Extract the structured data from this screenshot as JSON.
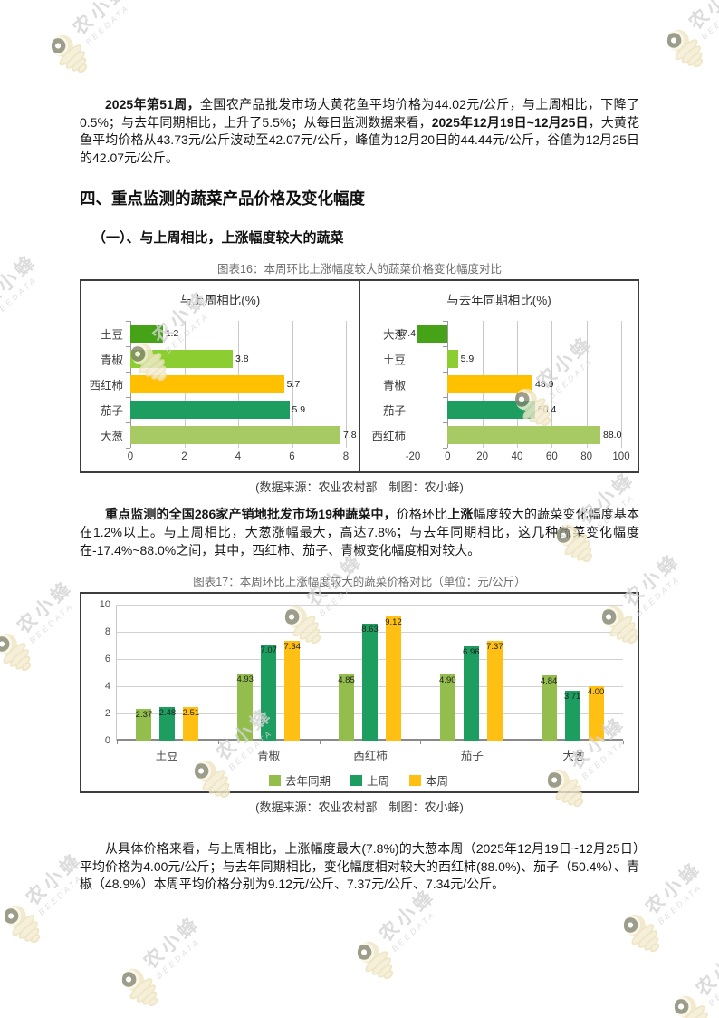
{
  "watermark": {
    "brand": "农小蜂",
    "subbrand": "BEEDATA"
  },
  "document": {
    "paragraph_1": {
      "segments": [
        {
          "text": "2025年第51周，",
          "bold": true
        },
        {
          "text": "全国农产品批发市场大黄花鱼平均价格为44.02元/公斤，与上周相比，下降了0.5%；与去年同期相比，上升了5.5%；从每日监测数据来看，",
          "bold": false
        },
        {
          "text": "2025年12月19日~12月25日",
          "bold": true
        },
        {
          "text": "，大黄花鱼平均价格从43.73元/公斤波动至42.07元/公斤，峰值为12月20日的44.44元/公斤，谷值为12月25日的42.07元/公斤。",
          "bold": false
        }
      ]
    },
    "section_heading": "四、重点监测的蔬菜产品价格及变化幅度",
    "subsection_heading": "（一）、与上周相比，上涨幅度较大的蔬菜",
    "paragraph_2": {
      "segments": [
        {
          "text": "重点监测的全国286家产销地批发市场19种蔬菜中，",
          "bold": true
        },
        {
          "text": "价格环比",
          "bold": false
        },
        {
          "text": "上涨",
          "bold": true
        },
        {
          "text": "幅度较大的蔬菜变化幅度基本在1.2%以上。与上周相比，大葱涨幅最大，高达7.8%；与去年同期相比，这几种蔬菜变化幅度在-17.4%~88.0%之间，其中，西红柿、茄子、青椒变化幅度相对较大。",
          "bold": false
        }
      ]
    },
    "paragraph_3": {
      "segments": [
        {
          "text": "从具体价格来看，与上周相比，上涨幅度最大(7.8%)的大葱本周（2025年12月19日~12月25日）平均价格为4.00元/公斤；与去年同期相比，变化幅度相对较大的西红柿(88.0%)、茄子（50.4%）、青椒（48.9%）本周平均价格分别为9.12元/公斤、7.37元/公斤、7.34元/公斤。",
          "bold": false
        }
      ]
    }
  },
  "chart_data": [
    {
      "id": "figure-16",
      "type": "bar",
      "orientation": "horizontal",
      "title": "图表16：本周环比上涨幅度较大的蔬菜价格变化幅度对比",
      "source_note": "(数据来源：农业农村部　制图：农小蜂)",
      "grid": true,
      "panels": [
        {
          "title": "与上周相比(%)",
          "categories": [
            "土豆",
            "青椒",
            "西红柿",
            "茄子",
            "大葱"
          ],
          "values": [
            1.2,
            3.8,
            5.7,
            5.9,
            7.8
          ],
          "labels": [
            "1.2",
            "3.8",
            "5.7",
            "5.9",
            "7.8"
          ],
          "xlim": [
            0,
            8
          ],
          "xticks": [
            0,
            2,
            4,
            6,
            8
          ],
          "bar_colors": [
            "#46A317",
            "#8CCE32",
            "#FFC000",
            "#1E9D60",
            "#A7CA64"
          ]
        },
        {
          "title": "与去年同期相比(%)",
          "categories": [
            "大葱",
            "土豆",
            "青椒",
            "茄子",
            "西红柿"
          ],
          "values": [
            -17.4,
            5.9,
            48.9,
            50.4,
            88.0
          ],
          "labels": [
            "-17.4",
            "5.9",
            "48.9",
            "50.4",
            "88.0"
          ],
          "xlim": [
            -20,
            100
          ],
          "xticks": [
            -20,
            0,
            20,
            40,
            60,
            80,
            100
          ],
          "bar_colors": [
            "#46A317",
            "#8CCE32",
            "#FFC000",
            "#1E9D60",
            "#A7CA64"
          ]
        }
      ]
    },
    {
      "id": "figure-17",
      "type": "bar",
      "orientation": "vertical",
      "title": "图表17：本周环比上涨幅度较大的蔬菜价格对比（单位：元/公斤）",
      "source_note": "(数据来源：农业农村部　制图：农小蜂)",
      "grid": true,
      "legend_position": "bottom",
      "categories": [
        "土豆",
        "青椒",
        "西红柿",
        "茄子",
        "大葱"
      ],
      "series": [
        {
          "name": "去年同期",
          "color": "#93BE4D",
          "values": [
            2.37,
            4.93,
            4.85,
            4.9,
            4.84
          ],
          "labels": [
            "2.37",
            "4.93",
            "4.85",
            "4.90",
            "4.84"
          ]
        },
        {
          "name": "上周",
          "color": "#1E9D60",
          "values": [
            2.48,
            7.07,
            8.63,
            6.96,
            3.71
          ],
          "labels": [
            "2.48",
            "7.07",
            "8.63",
            "6.96",
            "3.71"
          ]
        },
        {
          "name": "本周",
          "color": "#FFC013",
          "values": [
            2.51,
            7.34,
            9.12,
            7.37,
            4.0
          ],
          "labels": [
            "2.51",
            "7.34",
            "9.12",
            "7.37",
            "4.00"
          ]
        }
      ],
      "ylim": [
        0,
        10
      ],
      "yticks": [
        0,
        2,
        4,
        6,
        8,
        10
      ]
    }
  ]
}
